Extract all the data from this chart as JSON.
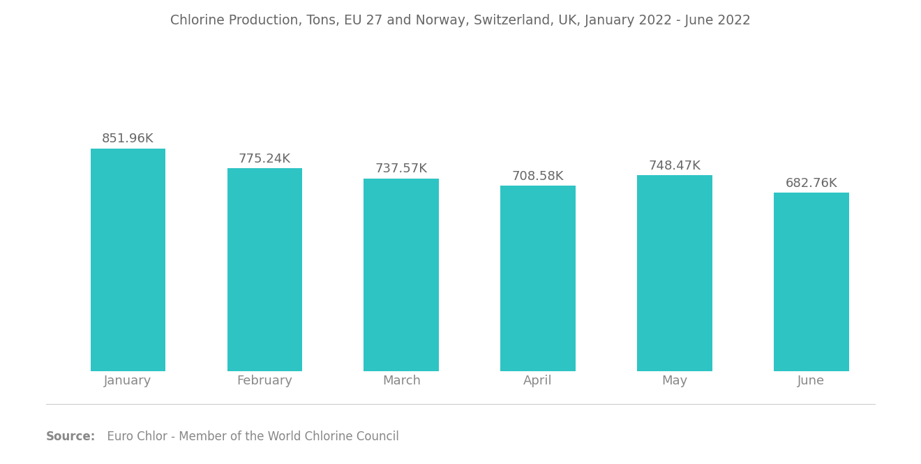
{
  "title": "Chlorine Production, Tons, EU 27 and Norway, Switzerland, UK, January 2022 - June 2022",
  "categories": [
    "January",
    "February",
    "March",
    "April",
    "May",
    "June"
  ],
  "values": [
    851960,
    775240,
    737570,
    708580,
    748470,
    682760
  ],
  "labels": [
    "851.96K",
    "775.24K",
    "737.57K",
    "708.58K",
    "748.47K",
    "682.76K"
  ],
  "bar_color": "#2EC4C4",
  "background_color": "#ffffff",
  "source_bold": "Source:",
  "source_rest": "  Euro Chlor - Member of the World Chlorine Council",
  "title_color": "#666666",
  "label_color": "#666666",
  "tick_color": "#888888",
  "source_color": "#888888",
  "title_fontsize": 13.5,
  "label_fontsize": 13,
  "tick_fontsize": 13,
  "source_fontsize": 12,
  "ylim": [
    0,
    1100000
  ],
  "bar_width": 0.55
}
